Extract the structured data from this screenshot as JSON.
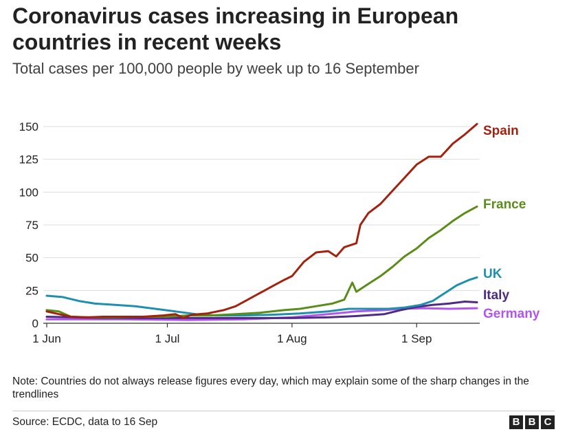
{
  "header": {
    "title": "Coronavirus cases increasing in European countries in recent weeks",
    "subtitle": "Total cases per 100,000 people by week up to 16 September"
  },
  "footer": {
    "note": "Note: Countries do not always release figures every day, which may explain some of the sharp changes in the trendlines",
    "source": "Source: ECDC, data to 16 Sep",
    "logo": [
      "B",
      "B",
      "C"
    ]
  },
  "chart_data": {
    "type": "line",
    "title": "Coronavirus cases increasing in European countries in recent weeks",
    "subtitle": "Total cases per 100,000 people by week up to 16 September",
    "xlabel": "",
    "ylabel": "",
    "xlim": [
      "2020-06-01",
      "2020-09-16"
    ],
    "ylim": [
      0,
      150
    ],
    "yticks": [
      0,
      25,
      50,
      75,
      100,
      125,
      150
    ],
    "xticks": [
      {
        "date": "2020-06-01",
        "label": "1 Jun"
      },
      {
        "date": "2020-07-01",
        "label": "1 Jul"
      },
      {
        "date": "2020-08-01",
        "label": "1 Aug"
      },
      {
        "date": "2020-09-01",
        "label": "1 Sep"
      }
    ],
    "grid": "horizontal",
    "legend": "labels at line ends (right)",
    "series": [
      {
        "name": "Spain",
        "color": "#a3210f",
        "points": [
          [
            "2020-06-01",
            9
          ],
          [
            "2020-06-04",
            7
          ],
          [
            "2020-06-07",
            5
          ],
          [
            "2020-06-11",
            4.5
          ],
          [
            "2020-06-15",
            5
          ],
          [
            "2020-06-20",
            5
          ],
          [
            "2020-06-25",
            5
          ],
          [
            "2020-06-30",
            6
          ],
          [
            "2020-07-03",
            7
          ],
          [
            "2020-07-05",
            4
          ],
          [
            "2020-07-07",
            6.5
          ],
          [
            "2020-07-11",
            7.5
          ],
          [
            "2020-07-15",
            10
          ],
          [
            "2020-07-18",
            13
          ],
          [
            "2020-07-21",
            18
          ],
          [
            "2020-07-24",
            23
          ],
          [
            "2020-07-27",
            28
          ],
          [
            "2020-07-30",
            33
          ],
          [
            "2020-08-01",
            36
          ],
          [
            "2020-08-04",
            47
          ],
          [
            "2020-08-07",
            54
          ],
          [
            "2020-08-10",
            55
          ],
          [
            "2020-08-12",
            51
          ],
          [
            "2020-08-14",
            58
          ],
          [
            "2020-08-17",
            61
          ],
          [
            "2020-08-18",
            75
          ],
          [
            "2020-08-20",
            84
          ],
          [
            "2020-08-23",
            91
          ],
          [
            "2020-08-26",
            101
          ],
          [
            "2020-08-29",
            111
          ],
          [
            "2020-09-01",
            121
          ],
          [
            "2020-09-04",
            127
          ],
          [
            "2020-09-07",
            127
          ],
          [
            "2020-09-10",
            137
          ],
          [
            "2020-09-13",
            144
          ],
          [
            "2020-09-16",
            152
          ]
        ]
      },
      {
        "name": "France",
        "color": "#5a8c18",
        "points": [
          [
            "2020-06-01",
            10
          ],
          [
            "2020-06-04",
            9
          ],
          [
            "2020-06-07",
            5
          ],
          [
            "2020-06-12",
            4.5
          ],
          [
            "2020-06-18",
            4.5
          ],
          [
            "2020-06-25",
            5
          ],
          [
            "2020-07-01",
            5
          ],
          [
            "2020-07-06",
            6
          ],
          [
            "2020-07-12",
            6
          ],
          [
            "2020-07-18",
            7
          ],
          [
            "2020-07-24",
            8
          ],
          [
            "2020-07-30",
            10
          ],
          [
            "2020-08-03",
            11
          ],
          [
            "2020-08-07",
            13
          ],
          [
            "2020-08-11",
            15
          ],
          [
            "2020-08-14",
            18
          ],
          [
            "2020-08-16",
            31
          ],
          [
            "2020-08-17",
            24
          ],
          [
            "2020-08-20",
            30
          ],
          [
            "2020-08-23",
            36
          ],
          [
            "2020-08-26",
            43
          ],
          [
            "2020-08-29",
            51
          ],
          [
            "2020-09-01",
            57
          ],
          [
            "2020-09-04",
            65
          ],
          [
            "2020-09-07",
            71
          ],
          [
            "2020-09-10",
            78
          ],
          [
            "2020-09-13",
            84
          ],
          [
            "2020-09-16",
            89
          ]
        ]
      },
      {
        "name": "UK",
        "color": "#1f8fae",
        "points": [
          [
            "2020-06-01",
            21
          ],
          [
            "2020-06-05",
            20
          ],
          [
            "2020-06-09",
            17
          ],
          [
            "2020-06-13",
            15
          ],
          [
            "2020-06-18",
            14
          ],
          [
            "2020-06-23",
            13
          ],
          [
            "2020-06-28",
            11
          ],
          [
            "2020-07-03",
            9
          ],
          [
            "2020-07-08",
            7
          ],
          [
            "2020-07-13",
            6
          ],
          [
            "2020-07-20",
            6
          ],
          [
            "2020-07-27",
            6.5
          ],
          [
            "2020-08-03",
            7.5
          ],
          [
            "2020-08-10",
            9
          ],
          [
            "2020-08-15",
            11
          ],
          [
            "2020-08-20",
            11
          ],
          [
            "2020-08-25",
            11
          ],
          [
            "2020-08-29",
            12
          ],
          [
            "2020-09-02",
            14
          ],
          [
            "2020-09-05",
            17
          ],
          [
            "2020-09-08",
            23
          ],
          [
            "2020-09-11",
            29
          ],
          [
            "2020-09-14",
            33
          ],
          [
            "2020-09-16",
            35
          ]
        ]
      },
      {
        "name": "Italy",
        "color": "#4d2b82",
        "points": [
          [
            "2020-06-01",
            5
          ],
          [
            "2020-06-15",
            4
          ],
          [
            "2020-07-01",
            4
          ],
          [
            "2020-07-15",
            4
          ],
          [
            "2020-08-01",
            4
          ],
          [
            "2020-08-10",
            4.5
          ],
          [
            "2020-08-17",
            5.5
          ],
          [
            "2020-08-24",
            7
          ],
          [
            "2020-08-28",
            10
          ],
          [
            "2020-09-01",
            12.5
          ],
          [
            "2020-09-05",
            14
          ],
          [
            "2020-09-09",
            15
          ],
          [
            "2020-09-13",
            16.5
          ],
          [
            "2020-09-16",
            16
          ]
        ]
      },
      {
        "name": "Germany",
        "color": "#b454f0",
        "points": [
          [
            "2020-06-01",
            3
          ],
          [
            "2020-06-20",
            3
          ],
          [
            "2020-07-06",
            2.5
          ],
          [
            "2020-07-20",
            3
          ],
          [
            "2020-08-01",
            4.5
          ],
          [
            "2020-08-10",
            7
          ],
          [
            "2020-08-17",
            9
          ],
          [
            "2020-08-24",
            10
          ],
          [
            "2020-08-28",
            11
          ],
          [
            "2020-09-03",
            11.5
          ],
          [
            "2020-09-09",
            11
          ],
          [
            "2020-09-16",
            11.5
          ]
        ]
      }
    ]
  }
}
